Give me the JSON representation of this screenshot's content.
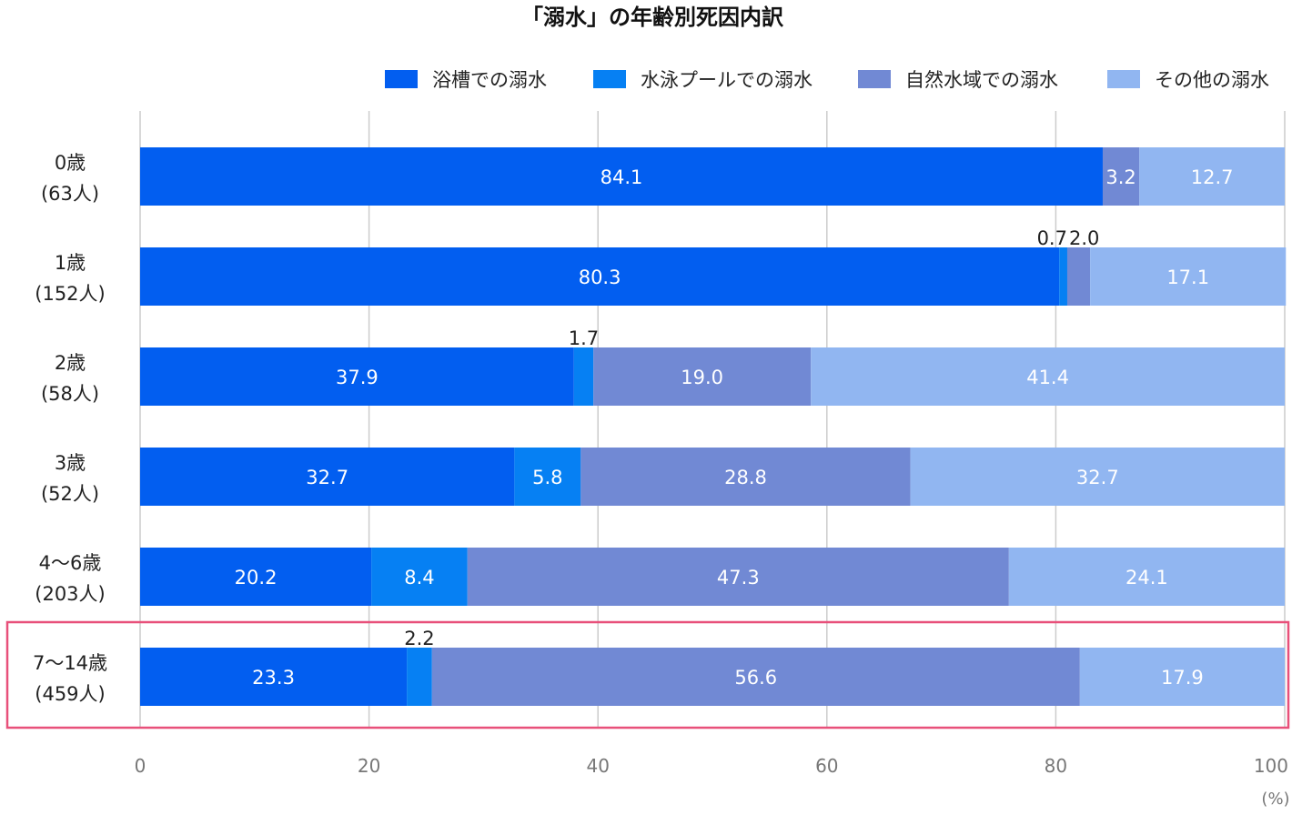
{
  "chart_data": {
    "type": "bar",
    "orientation": "horizontal",
    "stacked": true,
    "title": "「溺水」の年齢別死因内訳",
    "unit_label": "(%)",
    "categories": [
      [
        "0歳",
        "(63人)"
      ],
      [
        "1歳",
        "(152人)"
      ],
      [
        "2歳",
        "(58人)"
      ],
      [
        "3歳",
        "(52人)"
      ],
      [
        "4〜6歳",
        "(203人)"
      ],
      [
        "7〜14歳",
        "(459人)"
      ]
    ],
    "series": [
      {
        "name": "浴槽での溺水",
        "color": "#025ef0",
        "values": [
          84.1,
          80.3,
          37.9,
          32.7,
          20.2,
          23.3
        ],
        "labels": [
          "84.1",
          "80.3",
          "37.9",
          "32.7",
          "20.2",
          "23.3"
        ]
      },
      {
        "name": "水泳プールでの溺水",
        "color": "#0680f3",
        "values": [
          0,
          0.7,
          1.7,
          5.8,
          8.4,
          2.2
        ],
        "labels": [
          "",
          "0.7",
          "1.7",
          "5.8",
          "8.4",
          "2.2"
        ]
      },
      {
        "name": "自然水域での溺水",
        "color": "#7189d4",
        "values": [
          3.2,
          2.0,
          19.0,
          28.8,
          47.3,
          56.6
        ],
        "labels": [
          "3.2",
          "2.0",
          "19.0",
          "28.8",
          "47.3",
          "56.6"
        ]
      },
      {
        "name": "その他の溺水",
        "color": "#91b6f1",
        "values": [
          12.7,
          17.1,
          41.4,
          32.7,
          24.1,
          17.9
        ],
        "labels": [
          "12.7",
          "17.1",
          "41.4",
          "32.7",
          "24.1",
          "17.9"
        ]
      }
    ],
    "xlim": [
      0,
      100
    ],
    "xticks": [
      "0",
      "20",
      "40",
      "60",
      "80",
      "100"
    ],
    "grid": true,
    "legend_position": "top-right",
    "highlight": {
      "category": "7〜14歳",
      "color": "#e8507a"
    }
  }
}
